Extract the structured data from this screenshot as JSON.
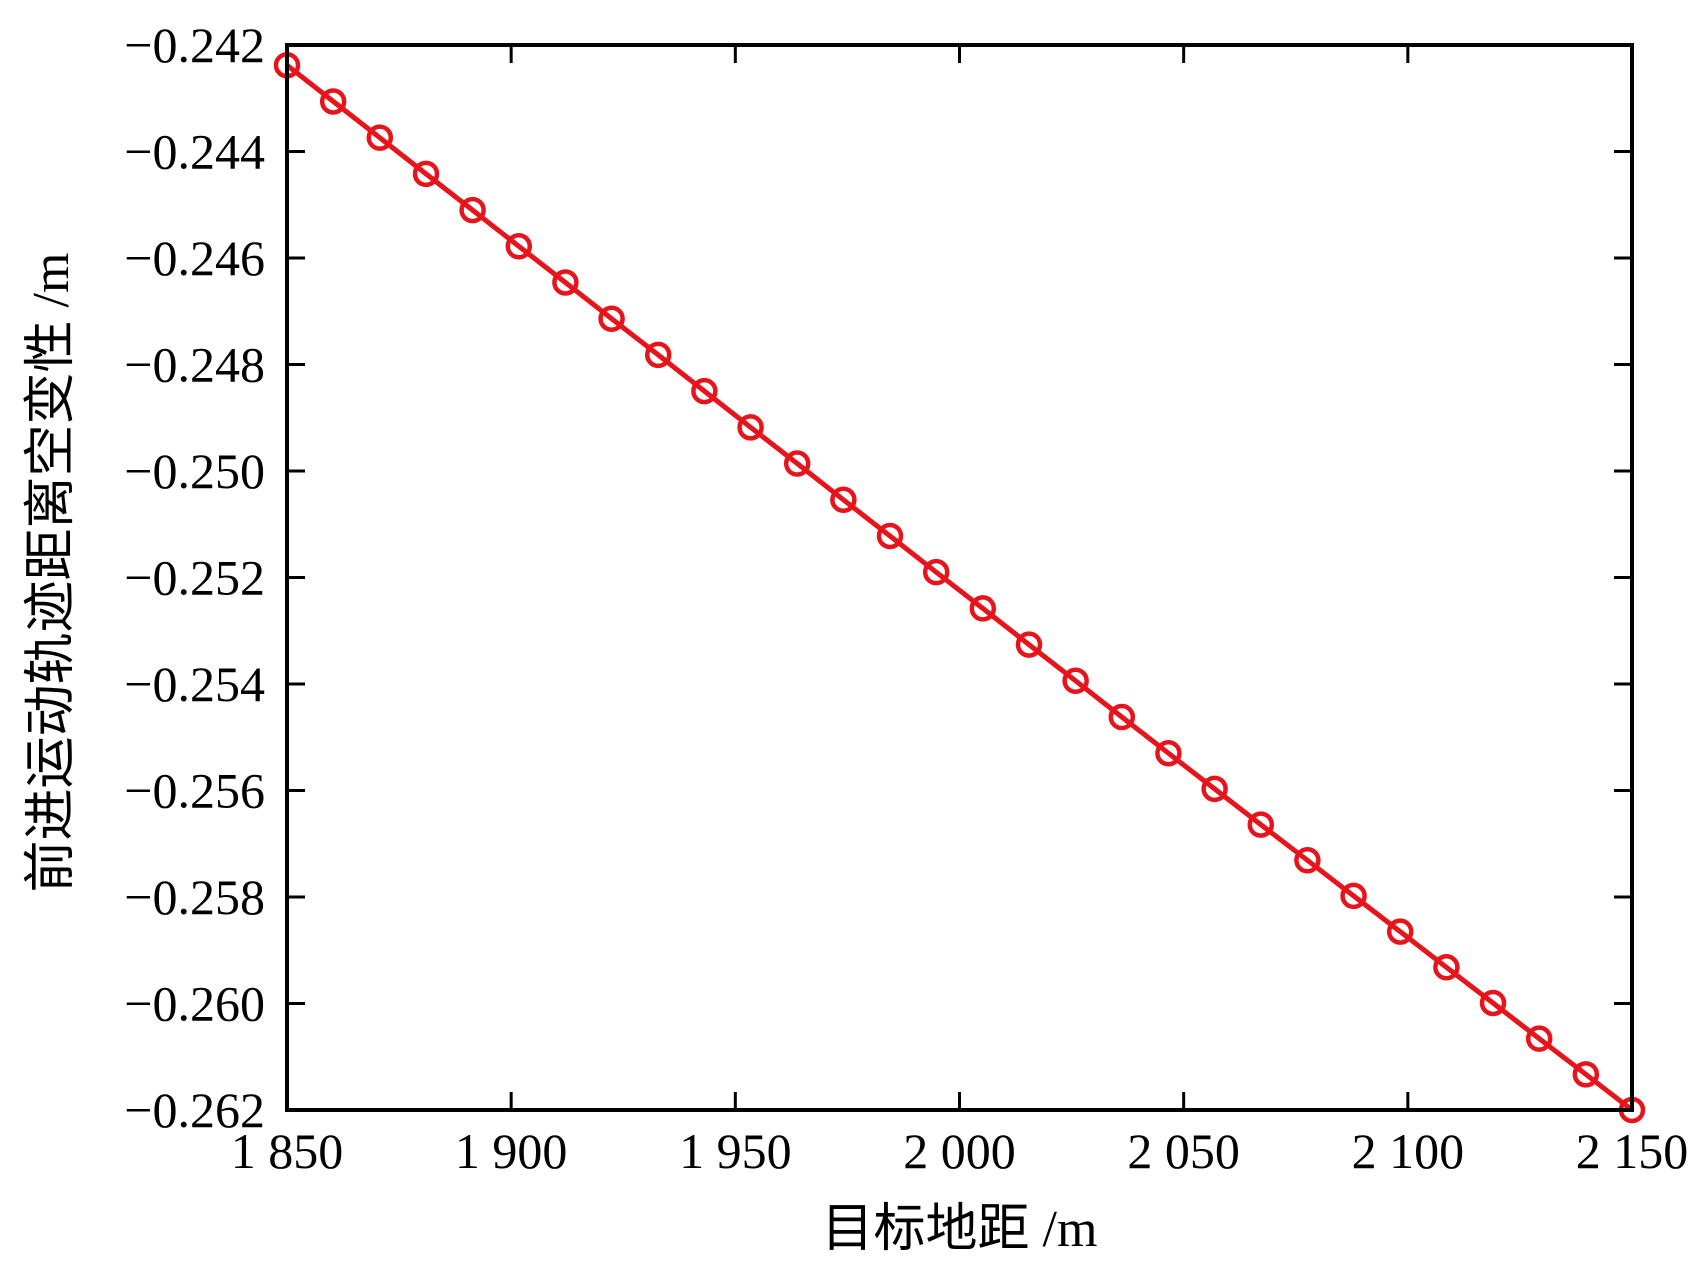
{
  "chart_data": {
    "type": "line",
    "title": "",
    "xlabel": "目标地距 /m",
    "ylabel": "前进运动轨迹距离空变性 /m",
    "xlim": [
      1850,
      2150
    ],
    "ylim": [
      -0.262,
      -0.242
    ],
    "xticks": [
      1850,
      1900,
      1950,
      2000,
      2050,
      2100,
      2150
    ],
    "xtick_labels": [
      "1 850",
      "1 900",
      "1 950",
      "2 000",
      "2 050",
      "2 100",
      "2 150"
    ],
    "yticks": [
      -0.242,
      -0.244,
      -0.246,
      -0.248,
      -0.25,
      -0.252,
      -0.254,
      -0.256,
      -0.258,
      -0.26,
      -0.262
    ],
    "ytick_labels": [
      "−0.242",
      "−0.244",
      "−0.246",
      "−0.248",
      "−0.250",
      "−0.252",
      "−0.254",
      "−0.256",
      "−0.258",
      "−0.260",
      "−0.262"
    ],
    "grid": false,
    "legend": "none",
    "series": [
      {
        "color": "#e8141c",
        "marker": "circle-open",
        "x": [
          1850,
          1860.3,
          1870.7,
          1881.0,
          1891.4,
          1901.7,
          1912.1,
          1922.4,
          1932.8,
          1943.1,
          1953.4,
          1963.8,
          1974.1,
          1984.5,
          1994.8,
          2005.2,
          2015.5,
          2025.9,
          2036.2,
          2046.6,
          2056.9,
          2067.2,
          2077.6,
          2087.9,
          2098.3,
          2108.6,
          2119.0,
          2129.3,
          2139.7,
          2150
        ],
        "y": [
          -0.24238,
          -0.24306,
          -0.24374,
          -0.24442,
          -0.2451,
          -0.24578,
          -0.24646,
          -0.24714,
          -0.24782,
          -0.2485,
          -0.24918,
          -0.24986,
          -0.25054,
          -0.25122,
          -0.2519,
          -0.25258,
          -0.25326,
          -0.25394,
          -0.25462,
          -0.2553,
          -0.25597,
          -0.25664,
          -0.25731,
          -0.25798,
          -0.25865,
          -0.25932,
          -0.25999,
          -0.26066,
          -0.26133,
          -0.262
        ]
      }
    ]
  }
}
